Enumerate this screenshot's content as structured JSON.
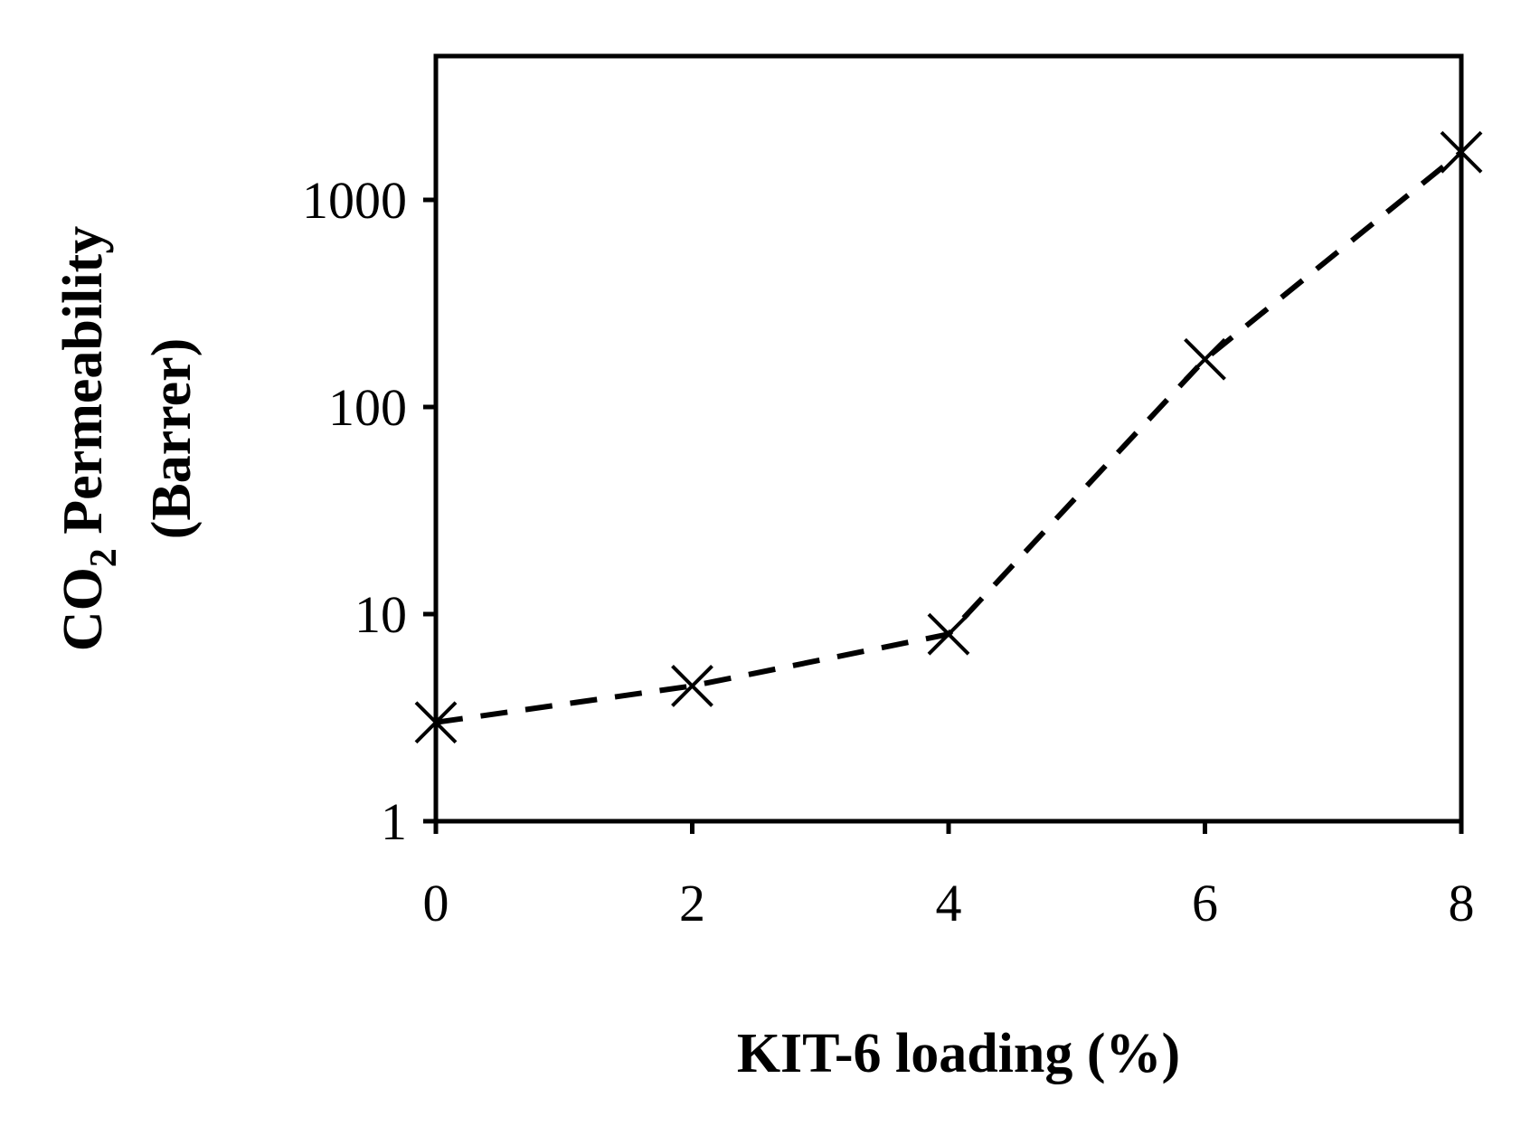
{
  "chart_data": {
    "type": "line",
    "x": [
      0,
      2,
      4,
      6,
      8
    ],
    "series": [
      {
        "values": [
          3,
          4.5,
          8,
          170,
          1700
        ],
        "marker": "x",
        "line_style": "dashed",
        "color": "#000000"
      }
    ],
    "xlabel": "KIT-6 loading (%)",
    "ylabel_main": "CO",
    "ylabel_sub": "2",
    "ylabel_rest": " Permeability",
    "ylabel_line2": "(Barrer)",
    "xticks": [
      "0",
      "2",
      "4",
      "6",
      "8"
    ],
    "yticks": [
      "1",
      "10",
      "100",
      "1000"
    ],
    "xlim": [
      0,
      8
    ],
    "ylim": [
      1,
      5000
    ],
    "yscale": "log",
    "grid": false
  }
}
